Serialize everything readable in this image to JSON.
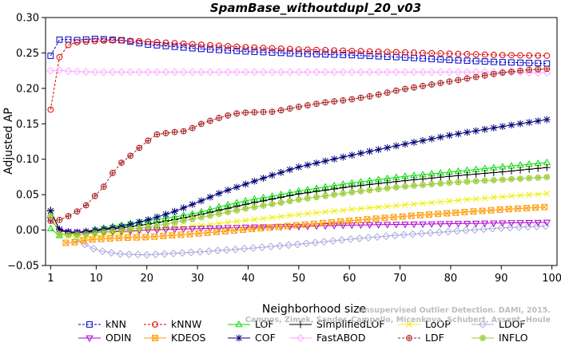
{
  "chart_data": {
    "type": "line",
    "title": "SpamBase_withoutdupl_20_v03",
    "xlabel": "Neighborhood size",
    "ylabel": "Adjusted AP",
    "xlim": [
      0,
      101
    ],
    "ylim": [
      -0.05,
      0.3
    ],
    "x_ticks": [
      1,
      10,
      20,
      30,
      40,
      50,
      60,
      70,
      80,
      90,
      100
    ],
    "y_ticks": [
      -0.05,
      0.0,
      0.05,
      0.1,
      0.15,
      0.2,
      0.25,
      0.3
    ],
    "y_tick_labels": [
      "−0.05",
      "0.00",
      "0.05",
      "0.10",
      "0.15",
      "0.20",
      "0.25",
      "0.30"
    ],
    "grid": false,
    "legend_position": "bottom",
    "x_range": [
      1,
      100
    ],
    "watermark_lines": [
      "Unsupervised Outlier Detection. DAMI, 2015.",
      "Campos, Zimek, Sander, Campello, Micenkova, Schubert, Assent, Houle"
    ],
    "series": [
      {
        "name": "kNN",
        "color": "#0000cc",
        "marker": "square",
        "dash": true,
        "points": [
          [
            1,
            0.246
          ],
          [
            2,
            0.265
          ],
          [
            3,
            0.27
          ],
          [
            6,
            0.268
          ],
          [
            10,
            0.27
          ],
          [
            15,
            0.268
          ],
          [
            20,
            0.262
          ],
          [
            30,
            0.256
          ],
          [
            40,
            0.252
          ],
          [
            50,
            0.249
          ],
          [
            60,
            0.247
          ],
          [
            70,
            0.244
          ],
          [
            80,
            0.24
          ],
          [
            90,
            0.237
          ],
          [
            100,
            0.235
          ]
        ]
      },
      {
        "name": "kNNW",
        "color": "#dd0000",
        "marker": "circle",
        "dash": true,
        "points": [
          [
            1,
            0.17
          ],
          [
            2,
            0.226
          ],
          [
            3,
            0.25
          ],
          [
            4,
            0.26
          ],
          [
            6,
            0.265
          ],
          [
            10,
            0.267
          ],
          [
            14,
            0.268
          ],
          [
            20,
            0.266
          ],
          [
            30,
            0.262
          ],
          [
            40,
            0.258
          ],
          [
            50,
            0.255
          ],
          [
            60,
            0.253
          ],
          [
            70,
            0.251
          ],
          [
            80,
            0.249
          ],
          [
            90,
            0.247
          ],
          [
            100,
            0.246
          ]
        ]
      },
      {
        "name": "LOF",
        "color": "#00dd00",
        "marker": "triangle-up",
        "dash": false,
        "points": [
          [
            1,
            0.002
          ],
          [
            2,
            -0.01
          ],
          [
            4,
            -0.004
          ],
          [
            6,
            -0.005
          ],
          [
            8,
            -0.002
          ],
          [
            10,
            0.001
          ],
          [
            15,
            0.007
          ],
          [
            20,
            0.013
          ],
          [
            25,
            0.018
          ],
          [
            30,
            0.024
          ],
          [
            35,
            0.034
          ],
          [
            40,
            0.042
          ],
          [
            45,
            0.048
          ],
          [
            50,
            0.055
          ],
          [
            60,
            0.066
          ],
          [
            70,
            0.075
          ],
          [
            80,
            0.082
          ],
          [
            90,
            0.089
          ],
          [
            100,
            0.096
          ]
        ]
      },
      {
        "name": "SimplifiedLOF",
        "color": "#000000",
        "marker": "plus",
        "dash": false,
        "points": [
          [
            1,
            0.028
          ],
          [
            2,
            0.003
          ],
          [
            4,
            -0.004
          ],
          [
            6,
            -0.004
          ],
          [
            8,
            -0.003
          ],
          [
            10,
            -0.001
          ],
          [
            15,
            0.003
          ],
          [
            20,
            0.008
          ],
          [
            25,
            0.014
          ],
          [
            30,
            0.021
          ],
          [
            35,
            0.029
          ],
          [
            40,
            0.037
          ],
          [
            45,
            0.044
          ],
          [
            50,
            0.051
          ],
          [
            60,
            0.061
          ],
          [
            70,
            0.069
          ],
          [
            80,
            0.076
          ],
          [
            90,
            0.082
          ],
          [
            100,
            0.089
          ]
        ]
      },
      {
        "name": "LoOP",
        "color": "#eeee00",
        "marker": "cross",
        "dash": false,
        "points": [
          [
            1,
            0.025
          ],
          [
            2,
            0.0
          ],
          [
            4,
            -0.008
          ],
          [
            6,
            -0.01
          ],
          [
            8,
            -0.01
          ],
          [
            10,
            -0.008
          ],
          [
            15,
            -0.004
          ],
          [
            20,
            0.0
          ],
          [
            30,
            0.006
          ],
          [
            40,
            0.014
          ],
          [
            50,
            0.022
          ],
          [
            60,
            0.029
          ],
          [
            70,
            0.035
          ],
          [
            80,
            0.041
          ],
          [
            90,
            0.047
          ],
          [
            100,
            0.052
          ]
        ]
      },
      {
        "name": "LDOF",
        "color": "#aaaadd",
        "marker": "diamond",
        "dash": false,
        "points": [
          [
            6,
            -0.014
          ],
          [
            8,
            -0.021
          ],
          [
            10,
            -0.028
          ],
          [
            12,
            -0.031
          ],
          [
            15,
            -0.034
          ],
          [
            20,
            -0.035
          ],
          [
            25,
            -0.033
          ],
          [
            30,
            -0.031
          ],
          [
            40,
            -0.026
          ],
          [
            50,
            -0.02
          ],
          [
            60,
            -0.013
          ],
          [
            70,
            -0.007
          ],
          [
            80,
            -0.002
          ],
          [
            90,
            0.003
          ],
          [
            100,
            0.006
          ]
        ]
      },
      {
        "name": "ODIN",
        "color": "#aa00cc",
        "marker": "triangle-down",
        "dash": false,
        "points": [
          [
            1,
            0.015
          ],
          [
            2,
            0.0
          ],
          [
            4,
            -0.003
          ],
          [
            8,
            -0.004
          ],
          [
            10,
            -0.003
          ],
          [
            15,
            -0.002
          ],
          [
            20,
            0.0
          ],
          [
            30,
            0.002
          ],
          [
            40,
            0.004
          ],
          [
            50,
            0.005
          ],
          [
            60,
            0.007
          ],
          [
            70,
            0.008
          ],
          [
            80,
            0.009
          ],
          [
            90,
            0.01
          ],
          [
            100,
            0.011
          ]
        ]
      },
      {
        "name": "KDEOS",
        "color": "#ff9900",
        "marker": "square-x",
        "dash": false,
        "points": [
          [
            4,
            -0.018
          ],
          [
            6,
            -0.017
          ],
          [
            8,
            -0.014
          ],
          [
            10,
            -0.013
          ],
          [
            15,
            -0.011
          ],
          [
            20,
            -0.01
          ],
          [
            30,
            -0.005
          ],
          [
            40,
            0.001
          ],
          [
            50,
            0.007
          ],
          [
            60,
            0.013
          ],
          [
            70,
            0.019
          ],
          [
            80,
            0.024
          ],
          [
            90,
            0.029
          ],
          [
            100,
            0.033
          ]
        ]
      },
      {
        "name": "COF",
        "color": "#000077",
        "marker": "star",
        "dash": false,
        "points": [
          [
            1,
            0.027
          ],
          [
            2,
            0.003
          ],
          [
            4,
            -0.002
          ],
          [
            6,
            -0.003
          ],
          [
            8,
            -0.002
          ],
          [
            10,
            0.0
          ],
          [
            15,
            0.005
          ],
          [
            20,
            0.014
          ],
          [
            25,
            0.025
          ],
          [
            30,
            0.039
          ],
          [
            35,
            0.054
          ],
          [
            40,
            0.066
          ],
          [
            45,
            0.078
          ],
          [
            50,
            0.089
          ],
          [
            60,
            0.105
          ],
          [
            70,
            0.12
          ],
          [
            80,
            0.134
          ],
          [
            90,
            0.146
          ],
          [
            100,
            0.157
          ]
        ]
      },
      {
        "name": "FastABOD",
        "color": "#ffaaff",
        "marker": "diamond",
        "dash": false,
        "points": [
          [
            1,
            0.225
          ],
          [
            2,
            0.226
          ],
          [
            5,
            0.224
          ],
          [
            10,
            0.223
          ],
          [
            20,
            0.223
          ],
          [
            30,
            0.223
          ],
          [
            40,
            0.223
          ],
          [
            50,
            0.223
          ],
          [
            60,
            0.223
          ],
          [
            70,
            0.223
          ],
          [
            80,
            0.223
          ],
          [
            90,
            0.223
          ],
          [
            100,
            0.222
          ]
        ]
      },
      {
        "name": "LDF",
        "color": "#aa2222",
        "marker": "circle-plus",
        "dash": true,
        "points": [
          [
            1,
            0.013
          ],
          [
            2,
            0.012
          ],
          [
            4,
            0.018
          ],
          [
            6,
            0.025
          ],
          [
            8,
            0.035
          ],
          [
            10,
            0.05
          ],
          [
            12,
            0.065
          ],
          [
            14,
            0.09
          ],
          [
            16,
            0.1
          ],
          [
            18,
            0.113
          ],
          [
            20,
            0.125
          ],
          [
            22,
            0.135
          ],
          [
            25,
            0.138
          ],
          [
            28,
            0.14
          ],
          [
            30,
            0.148
          ],
          [
            32,
            0.153
          ],
          [
            35,
            0.16
          ],
          [
            38,
            0.165
          ],
          [
            40,
            0.166
          ],
          [
            45,
            0.167
          ],
          [
            50,
            0.174
          ],
          [
            55,
            0.18
          ],
          [
            60,
            0.184
          ],
          [
            65,
            0.19
          ],
          [
            70,
            0.198
          ],
          [
            75,
            0.204
          ],
          [
            80,
            0.21
          ],
          [
            85,
            0.216
          ],
          [
            90,
            0.222
          ],
          [
            95,
            0.226
          ],
          [
            100,
            0.228
          ]
        ]
      },
      {
        "name": "INFLO",
        "color": "#99cc33",
        "marker": "circle-star",
        "dash": false,
        "points": [
          [
            1,
            0.02
          ],
          [
            2,
            -0.005
          ],
          [
            4,
            -0.007
          ],
          [
            8,
            -0.006
          ],
          [
            10,
            -0.004
          ],
          [
            15,
            0.0
          ],
          [
            20,
            0.004
          ],
          [
            25,
            0.01
          ],
          [
            30,
            0.017
          ],
          [
            35,
            0.024
          ],
          [
            40,
            0.031
          ],
          [
            45,
            0.037
          ],
          [
            50,
            0.043
          ],
          [
            60,
            0.053
          ],
          [
            70,
            0.061
          ],
          [
            80,
            0.067
          ],
          [
            90,
            0.071
          ],
          [
            100,
            0.075
          ]
        ]
      }
    ]
  }
}
